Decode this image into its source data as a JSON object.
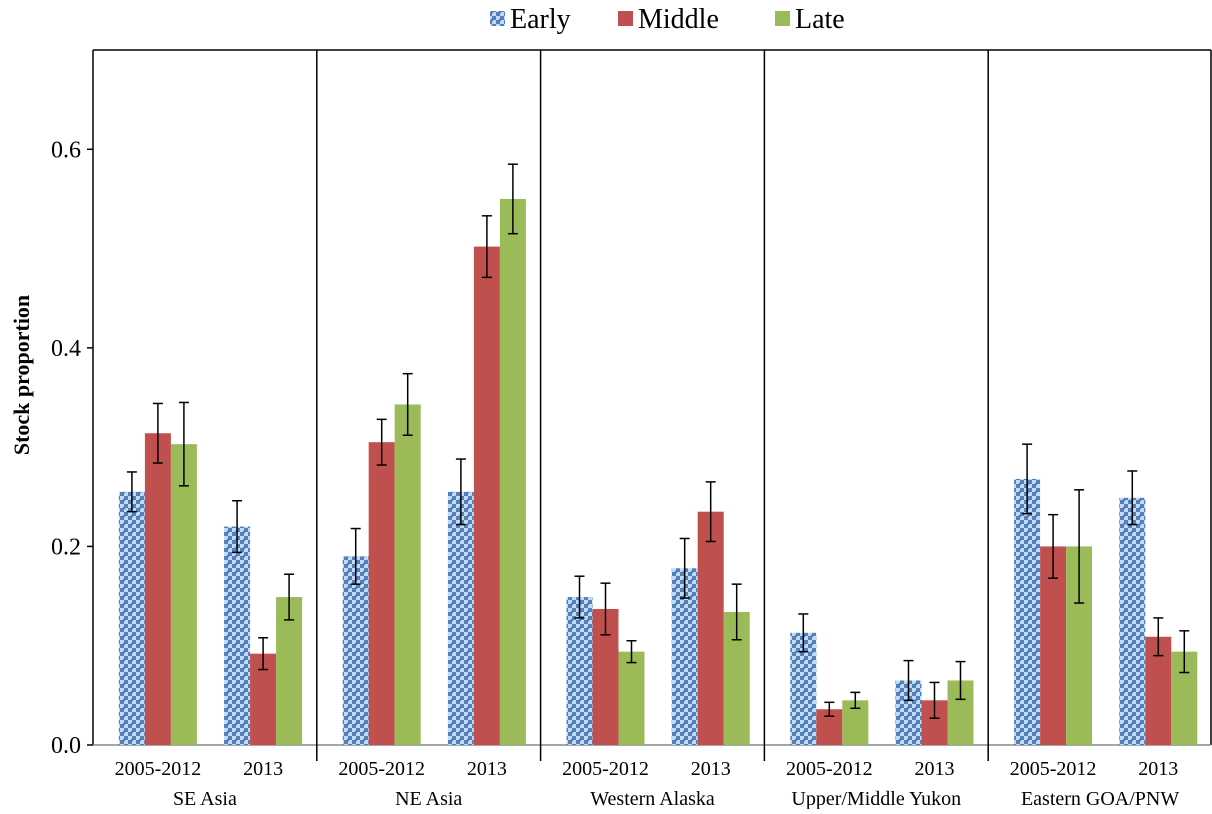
{
  "chart_data": {
    "type": "bar",
    "ylabel": "Stock proportion",
    "ylim": [
      0,
      0.7
    ],
    "yticks": [
      "0.0",
      "0.2",
      "0.4",
      "0.6"
    ],
    "ytick_values": [
      0,
      0.2,
      0.4,
      0.6
    ],
    "legend_position": "top-center",
    "colors": {
      "Early": "#4f81bd",
      "Middle": "#c0504d",
      "Late": "#9bbb59"
    },
    "series_names": [
      "Early",
      "Middle",
      "Late"
    ],
    "groups": [
      {
        "name": "SE Asia",
        "periods": [
          {
            "label": "2005-2012",
            "values": [
              0.255,
              0.314,
              0.303
            ],
            "errors": [
              0.02,
              0.03,
              0.042
            ]
          },
          {
            "label": "2013",
            "values": [
              0.22,
              0.092,
              0.149
            ],
            "errors": [
              0.026,
              0.016,
              0.023
            ]
          }
        ]
      },
      {
        "name": "NE Asia",
        "periods": [
          {
            "label": "2005-2012",
            "values": [
              0.19,
              0.305,
              0.343
            ],
            "errors": [
              0.028,
              0.023,
              0.031
            ]
          },
          {
            "label": "2013",
            "values": [
              0.255,
              0.502,
              0.55
            ],
            "errors": [
              0.033,
              0.031,
              0.035
            ]
          }
        ]
      },
      {
        "name": "Western Alaska",
        "periods": [
          {
            "label": "2005-2012",
            "values": [
              0.149,
              0.137,
              0.094
            ],
            "errors": [
              0.021,
              0.026,
              0.011
            ]
          },
          {
            "label": "2013",
            "values": [
              0.178,
              0.235,
              0.134
            ],
            "errors": [
              0.03,
              0.03,
              0.028
            ]
          }
        ]
      },
      {
        "name": "Upper/Middle Yukon",
        "periods": [
          {
            "label": "2005-2012",
            "values": [
              0.113,
              0.036,
              0.045
            ],
            "errors": [
              0.019,
              0.007,
              0.008
            ]
          },
          {
            "label": "2013",
            "values": [
              0.065,
              0.045,
              0.065
            ],
            "errors": [
              0.02,
              0.018,
              0.019
            ]
          }
        ]
      },
      {
        "name": "Eastern GOA/PNW",
        "periods": [
          {
            "label": "2005-2012",
            "values": [
              0.268,
              0.2,
              0.2
            ],
            "errors": [
              0.035,
              0.032,
              0.057
            ]
          },
          {
            "label": "2013",
            "values": [
              0.249,
              0.109,
              0.094
            ],
            "errors": [
              0.027,
              0.019,
              0.021
            ]
          }
        ]
      }
    ]
  }
}
